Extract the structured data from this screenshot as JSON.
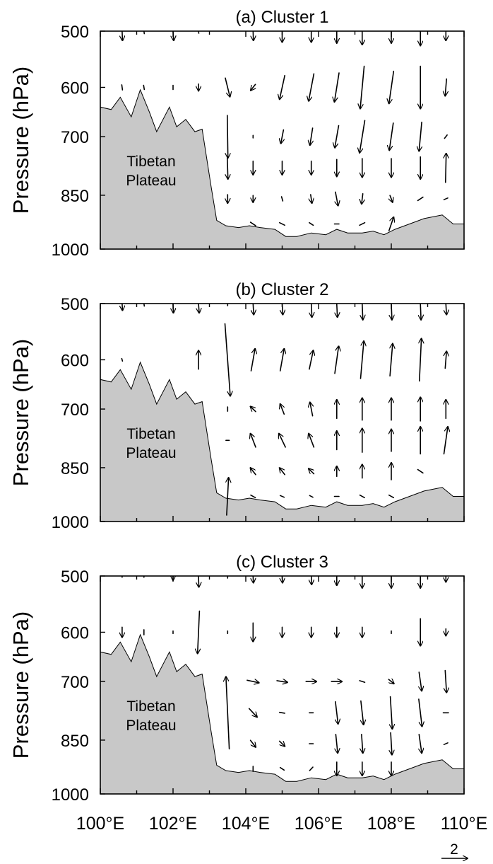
{
  "chart_data": [
    {
      "type": "vector",
      "title": "(a) Cluster 1",
      "ylabel": "Pressure (hPa)",
      "y_ticks": [
        "500",
        "600",
        "700",
        "850",
        "1000"
      ],
      "terrain_label": [
        "Tibetan",
        "Plateau"
      ],
      "terrain_color": "#c8c8c8",
      "vectors": [
        {
          "x": 100.6,
          "p": 500,
          "u": 0.1,
          "v": -2.2
        },
        {
          "x": 101.2,
          "p": 500,
          "u": 0.1,
          "v": -0.6
        },
        {
          "x": 102.0,
          "p": 500,
          "u": 0.2,
          "v": -2.2
        },
        {
          "x": 102.7,
          "p": 500,
          "u": 0.1,
          "v": -0.5
        },
        {
          "x": 104.2,
          "p": 500,
          "u": 0.1,
          "v": -2.2
        },
        {
          "x": 105.0,
          "p": 500,
          "u": 0.0,
          "v": -2.6
        },
        {
          "x": 105.8,
          "p": 500,
          "u": 0.0,
          "v": -2.6
        },
        {
          "x": 106.5,
          "p": 500,
          "u": 0.0,
          "v": -2.8
        },
        {
          "x": 107.2,
          "p": 500,
          "u": 0.0,
          "v": -3.2
        },
        {
          "x": 108.0,
          "p": 500,
          "u": 0.0,
          "v": -2.8
        },
        {
          "x": 108.8,
          "p": 500,
          "u": 0.0,
          "v": -3.4
        },
        {
          "x": 109.5,
          "p": 500,
          "u": 0.0,
          "v": -2.2
        },
        {
          "x": 100.6,
          "p": 600,
          "u": 0.1,
          "v": -0.6
        },
        {
          "x": 101.2,
          "p": 600,
          "u": 0.1,
          "v": -0.5
        },
        {
          "x": 102.0,
          "p": 600,
          "u": 0.0,
          "v": -0.5
        },
        {
          "x": 102.7,
          "p": 600,
          "u": 0.0,
          "v": -0.8
        },
        {
          "x": 103.5,
          "p": 600,
          "u": 0.7,
          "v": -2.2
        },
        {
          "x": 104.2,
          "p": 600,
          "u": -0.7,
          "v": -0.7
        },
        {
          "x": 105.0,
          "p": 600,
          "u": -0.8,
          "v": -2.8
        },
        {
          "x": 105.8,
          "p": 600,
          "u": -0.8,
          "v": -3.2
        },
        {
          "x": 106.5,
          "p": 600,
          "u": -0.7,
          "v": -3.4
        },
        {
          "x": 107.2,
          "p": 600,
          "u": -0.6,
          "v": -5.0
        },
        {
          "x": 108.0,
          "p": 600,
          "u": -0.7,
          "v": -3.8
        },
        {
          "x": 108.8,
          "p": 600,
          "u": 0.0,
          "v": -5.0
        },
        {
          "x": 109.5,
          "p": 600,
          "u": -0.2,
          "v": -2.0
        },
        {
          "x": 103.5,
          "p": 700,
          "u": 0.1,
          "v": -5.0
        },
        {
          "x": 104.2,
          "p": 700,
          "u": 0.0,
          "v": -0.3
        },
        {
          "x": 105.0,
          "p": 700,
          "u": -0.4,
          "v": -1.6
        },
        {
          "x": 105.8,
          "p": 700,
          "u": -0.4,
          "v": -2.0
        },
        {
          "x": 106.5,
          "p": 700,
          "u": -0.6,
          "v": -2.6
        },
        {
          "x": 107.2,
          "p": 700,
          "u": -0.8,
          "v": -3.8
        },
        {
          "x": 108.0,
          "p": 700,
          "u": -0.6,
          "v": -3.2
        },
        {
          "x": 108.8,
          "p": 700,
          "u": -0.4,
          "v": -3.4
        },
        {
          "x": 109.5,
          "p": 700,
          "u": -0.4,
          "v": -0.4
        },
        {
          "x": 103.5,
          "p": 780,
          "u": 0.1,
          "v": -2.6
        },
        {
          "x": 104.2,
          "p": 780,
          "u": 0.0,
          "v": -1.6
        },
        {
          "x": 105.0,
          "p": 780,
          "u": 0.0,
          "v": -1.6
        },
        {
          "x": 105.8,
          "p": 780,
          "u": 0.0,
          "v": -1.6
        },
        {
          "x": 106.5,
          "p": 780,
          "u": 0.0,
          "v": -2.0
        },
        {
          "x": 107.2,
          "p": 780,
          "u": 0.0,
          "v": -2.2
        },
        {
          "x": 108.0,
          "p": 780,
          "u": 0.0,
          "v": -2.2
        },
        {
          "x": 108.8,
          "p": 780,
          "u": 0.0,
          "v": -2.6
        },
        {
          "x": 109.5,
          "p": 780,
          "u": 0.1,
          "v": 3.4
        },
        {
          "x": 103.5,
          "p": 860,
          "u": 0.0,
          "v": -1.0
        },
        {
          "x": 104.2,
          "p": 860,
          "u": 0.0,
          "v": -0.8
        },
        {
          "x": 105.0,
          "p": 860,
          "u": 0.2,
          "v": -0.5
        },
        {
          "x": 105.8,
          "p": 860,
          "u": 0.2,
          "v": -1.0
        },
        {
          "x": 106.5,
          "p": 860,
          "u": 0.4,
          "v": -1.6
        },
        {
          "x": 107.2,
          "p": 860,
          "u": -0.2,
          "v": -1.2
        },
        {
          "x": 108.0,
          "p": 860,
          "u": 0.4,
          "v": -0.8
        },
        {
          "x": 108.8,
          "p": 860,
          "u": 0.8,
          "v": 0.4
        },
        {
          "x": 109.5,
          "p": 860,
          "u": 0.6,
          "v": 0.2
        },
        {
          "x": 104.2,
          "p": 930,
          "u": 0.8,
          "v": -0.4
        },
        {
          "x": 105.0,
          "p": 930,
          "u": 0.8,
          "v": -0.3
        },
        {
          "x": 105.8,
          "p": 930,
          "u": 0.6,
          "v": -0.3
        },
        {
          "x": 106.5,
          "p": 930,
          "u": 0.7,
          "v": 0.0
        },
        {
          "x": 107.2,
          "p": 930,
          "u": 0.8,
          "v": 0.3
        },
        {
          "x": 108.0,
          "p": 930,
          "u": 0.7,
          "v": 1.6
        }
      ]
    },
    {
      "type": "vector",
      "title": "(b) Cluster 2",
      "ylabel": "Pressure (hPa)",
      "y_ticks": [
        "500",
        "600",
        "700",
        "850",
        "1000"
      ],
      "terrain_label": [
        "Tibetan",
        "Plateau"
      ],
      "terrain_color": "#c8c8c8",
      "vectors": [
        {
          "x": 100.6,
          "p": 500,
          "u": 0.1,
          "v": -1.6
        },
        {
          "x": 101.2,
          "p": 500,
          "u": 0.1,
          "v": -0.6
        },
        {
          "x": 102.0,
          "p": 500,
          "u": 0.1,
          "v": -2.2
        },
        {
          "x": 102.7,
          "p": 500,
          "u": 0.2,
          "v": -2.2
        },
        {
          "x": 103.5,
          "p": 500,
          "u": 0.0,
          "v": -0.5
        },
        {
          "x": 104.2,
          "p": 500,
          "u": 0.2,
          "v": -2.6
        },
        {
          "x": 105.0,
          "p": 500,
          "u": 0.2,
          "v": -2.6
        },
        {
          "x": 105.8,
          "p": 500,
          "u": 0.2,
          "v": -3.2
        },
        {
          "x": 106.5,
          "p": 500,
          "u": 0.2,
          "v": -3.2
        },
        {
          "x": 107.2,
          "p": 500,
          "u": 0.2,
          "v": -3.8
        },
        {
          "x": 108.0,
          "p": 500,
          "u": 0.2,
          "v": -3.8
        },
        {
          "x": 108.8,
          "p": 500,
          "u": 0.2,
          "v": -3.8
        },
        {
          "x": 109.5,
          "p": 500,
          "u": 0.2,
          "v": -2.6
        },
        {
          "x": 100.6,
          "p": 600,
          "u": 0.1,
          "v": -0.3
        },
        {
          "x": 102.7,
          "p": 600,
          "u": 0.0,
          "v": 2.2
        },
        {
          "x": 103.5,
          "p": 600,
          "u": 0.8,
          "v": -8.5
        },
        {
          "x": 104.2,
          "p": 600,
          "u": 0.6,
          "v": 2.6
        },
        {
          "x": 105.0,
          "p": 600,
          "u": 0.6,
          "v": 2.6
        },
        {
          "x": 105.8,
          "p": 600,
          "u": 0.6,
          "v": 2.2
        },
        {
          "x": 106.5,
          "p": 600,
          "u": 0.6,
          "v": 3.2
        },
        {
          "x": 107.2,
          "p": 600,
          "u": 0.5,
          "v": 4.4
        },
        {
          "x": 108.0,
          "p": 600,
          "u": 0.4,
          "v": 3.8
        },
        {
          "x": 108.8,
          "p": 600,
          "u": 0.3,
          "v": 5.0
        },
        {
          "x": 109.5,
          "p": 600,
          "u": 0.2,
          "v": 2.0
        },
        {
          "x": 103.5,
          "p": 700,
          "u": 0.0,
          "v": -0.5
        },
        {
          "x": 104.2,
          "p": 700,
          "u": -0.8,
          "v": 0.6
        },
        {
          "x": 105.0,
          "p": 700,
          "u": -0.6,
          "v": 1.2
        },
        {
          "x": 105.8,
          "p": 700,
          "u": -0.4,
          "v": 1.6
        },
        {
          "x": 106.5,
          "p": 700,
          "u": 0.0,
          "v": 2.2
        },
        {
          "x": 107.2,
          "p": 700,
          "u": 0.0,
          "v": 2.6
        },
        {
          "x": 108.0,
          "p": 700,
          "u": 0.0,
          "v": 2.6
        },
        {
          "x": 108.8,
          "p": 700,
          "u": 0.0,
          "v": 2.8
        },
        {
          "x": 109.5,
          "p": 700,
          "u": 0.0,
          "v": 2.2
        },
        {
          "x": 103.5,
          "p": 780,
          "u": -0.5,
          "v": 0.0
        },
        {
          "x": 104.2,
          "p": 780,
          "u": -0.8,
          "v": 1.6
        },
        {
          "x": 105.0,
          "p": 780,
          "u": -1.0,
          "v": 1.6
        },
        {
          "x": 105.8,
          "p": 780,
          "u": -0.8,
          "v": 1.6
        },
        {
          "x": 106.5,
          "p": 780,
          "u": 0.0,
          "v": 2.2
        },
        {
          "x": 107.2,
          "p": 780,
          "u": 0.0,
          "v": 2.8
        },
        {
          "x": 108.0,
          "p": 780,
          "u": 0.0,
          "v": 2.6
        },
        {
          "x": 108.8,
          "p": 780,
          "u": 0.0,
          "v": 3.2
        },
        {
          "x": 109.5,
          "p": 780,
          "u": 0.6,
          "v": 3.2
        },
        {
          "x": 104.2,
          "p": 860,
          "u": -0.8,
          "v": 0.8
        },
        {
          "x": 105.0,
          "p": 860,
          "u": -0.8,
          "v": 0.8
        },
        {
          "x": 105.8,
          "p": 860,
          "u": -0.8,
          "v": 0.6
        },
        {
          "x": 106.5,
          "p": 860,
          "u": 0.0,
          "v": 1.2
        },
        {
          "x": 107.2,
          "p": 860,
          "u": 0.0,
          "v": 1.6
        },
        {
          "x": 108.0,
          "p": 860,
          "u": 0.0,
          "v": 2.0
        },
        {
          "x": 108.8,
          "p": 860,
          "u": -0.8,
          "v": 0.4
        },
        {
          "x": 103.5,
          "p": 930,
          "u": 0.3,
          "v": 4.4
        },
        {
          "x": 104.2,
          "p": 930,
          "u": -0.7,
          "v": 0.3
        },
        {
          "x": 105.0,
          "p": 930,
          "u": -0.6,
          "v": 0.2
        },
        {
          "x": 105.8,
          "p": 930,
          "u": -0.5,
          "v": 0.2
        },
        {
          "x": 106.5,
          "p": 930,
          "u": -0.7,
          "v": 0.0
        },
        {
          "x": 107.2,
          "p": 930,
          "u": -0.7,
          "v": 0.3
        },
        {
          "x": 108.0,
          "p": 930,
          "u": -0.7,
          "v": 0.3
        }
      ]
    },
    {
      "type": "vector",
      "title": "(c) Cluster 3",
      "ylabel": "Pressure (hPa)",
      "y_ticks": [
        "500",
        "600",
        "700",
        "850",
        "1000"
      ],
      "terrain_label": [
        "Tibetan",
        "Plateau"
      ],
      "terrain_color": "#c8c8c8",
      "vectors": [
        {
          "x": 100.6,
          "p": 500,
          "u": 0.0,
          "v": -0.3
        },
        {
          "x": 101.2,
          "p": 500,
          "u": 0.0,
          "v": -0.3
        },
        {
          "x": 102.0,
          "p": 500,
          "u": 0.0,
          "v": -1.0
        },
        {
          "x": 102.7,
          "p": 500,
          "u": 0.1,
          "v": -2.6
        },
        {
          "x": 103.5,
          "p": 500,
          "u": 0.0,
          "v": -0.5
        },
        {
          "x": 104.2,
          "p": 500,
          "u": 0.1,
          "v": -1.6
        },
        {
          "x": 105.0,
          "p": 500,
          "u": 0.1,
          "v": -1.6
        },
        {
          "x": 105.8,
          "p": 500,
          "u": 0.1,
          "v": -2.0
        },
        {
          "x": 106.5,
          "p": 500,
          "u": 0.0,
          "v": -2.2
        },
        {
          "x": 107.2,
          "p": 500,
          "u": 0.0,
          "v": -2.8
        },
        {
          "x": 108.0,
          "p": 500,
          "u": 0.0,
          "v": -2.8
        },
        {
          "x": 108.8,
          "p": 500,
          "u": 0.0,
          "v": -2.8
        },
        {
          "x": 109.5,
          "p": 500,
          "u": 0.0,
          "v": -1.4
        },
        {
          "x": 100.6,
          "p": 600,
          "u": 0.0,
          "v": -1.2
        },
        {
          "x": 101.2,
          "p": 600,
          "u": 0.0,
          "v": -0.6
        },
        {
          "x": 102.0,
          "p": 600,
          "u": 0.0,
          "v": -0.3
        },
        {
          "x": 102.7,
          "p": 600,
          "u": -0.3,
          "v": -5.0
        },
        {
          "x": 103.5,
          "p": 600,
          "u": 0.0,
          "v": -0.3
        },
        {
          "x": 104.2,
          "p": 600,
          "u": 0.0,
          "v": -2.2
        },
        {
          "x": 105.0,
          "p": 600,
          "u": 0.0,
          "v": -1.2
        },
        {
          "x": 105.8,
          "p": 600,
          "u": 0.0,
          "v": -1.2
        },
        {
          "x": 106.5,
          "p": 600,
          "u": 0.0,
          "v": -1.2
        },
        {
          "x": 107.2,
          "p": 600,
          "u": 0.0,
          "v": -1.2
        },
        {
          "x": 108.0,
          "p": 600,
          "u": 0.0,
          "v": -0.3
        },
        {
          "x": 108.8,
          "p": 600,
          "u": 0.0,
          "v": -3.2
        },
        {
          "x": 109.5,
          "p": 600,
          "u": 0.0,
          "v": -0.8
        },
        {
          "x": 104.2,
          "p": 700,
          "u": 1.8,
          "v": -0.3
        },
        {
          "x": 105.0,
          "p": 700,
          "u": 1.6,
          "v": -0.2
        },
        {
          "x": 105.8,
          "p": 700,
          "u": 1.6,
          "v": 0.0
        },
        {
          "x": 106.5,
          "p": 700,
          "u": 1.6,
          "v": 0.0
        },
        {
          "x": 107.2,
          "p": 700,
          "u": 0.8,
          "v": -0.2
        },
        {
          "x": 108.0,
          "p": 700,
          "u": 0.8,
          "v": -0.5
        },
        {
          "x": 108.8,
          "p": 700,
          "u": 0.4,
          "v": -2.2
        },
        {
          "x": 109.5,
          "p": 700,
          "u": 0.2,
          "v": -2.6
        },
        {
          "x": 103.5,
          "p": 780,
          "u": -0.5,
          "v": 8.5
        },
        {
          "x": 104.2,
          "p": 780,
          "u": 1.2,
          "v": -1.0
        },
        {
          "x": 105.0,
          "p": 780,
          "u": 0.8,
          "v": -0.1
        },
        {
          "x": 105.8,
          "p": 780,
          "u": 0.6,
          "v": 0.0
        },
        {
          "x": 106.5,
          "p": 780,
          "u": 0.4,
          "v": -2.6
        },
        {
          "x": 107.2,
          "p": 780,
          "u": 0.4,
          "v": -2.8
        },
        {
          "x": 108.0,
          "p": 780,
          "u": 0.3,
          "v": -3.8
        },
        {
          "x": 108.8,
          "p": 780,
          "u": 0.5,
          "v": -3.2
        },
        {
          "x": 109.5,
          "p": 780,
          "u": 0.8,
          "v": 0.0
        },
        {
          "x": 104.2,
          "p": 860,
          "u": 0.8,
          "v": -0.8
        },
        {
          "x": 105.0,
          "p": 860,
          "u": 0.8,
          "v": -0.6
        },
        {
          "x": 105.8,
          "p": 860,
          "u": 0.6,
          "v": 0.0
        },
        {
          "x": 106.5,
          "p": 860,
          "u": 0.3,
          "v": -2.2
        },
        {
          "x": 107.2,
          "p": 860,
          "u": 0.2,
          "v": -2.2
        },
        {
          "x": 108.0,
          "p": 860,
          "u": 0.2,
          "v": -2.6
        },
        {
          "x": 108.8,
          "p": 860,
          "u": 0.4,
          "v": -2.2
        },
        {
          "x": 109.5,
          "p": 860,
          "u": 0.6,
          "v": 0.2
        },
        {
          "x": 104.2,
          "p": 930,
          "u": 0.0,
          "v": -0.6
        },
        {
          "x": 105.0,
          "p": 930,
          "u": 0.6,
          "v": -0.3
        },
        {
          "x": 105.8,
          "p": 930,
          "u": 0.5,
          "v": 0.4
        },
        {
          "x": 106.5,
          "p": 930,
          "u": 0.0,
          "v": -1.6
        },
        {
          "x": 107.2,
          "p": 930,
          "u": 0.0,
          "v": -1.6
        },
        {
          "x": 108.0,
          "p": 930,
          "u": 0.0,
          "v": -1.6
        }
      ]
    }
  ],
  "terrain_profile": {
    "lon": [
      100.0,
      100.3,
      100.55,
      100.85,
      101.1,
      101.35,
      101.55,
      101.9,
      102.1,
      102.35,
      102.6,
      102.8,
      103.05,
      103.2,
      103.45,
      103.8,
      104.1,
      104.4,
      104.8,
      105.1,
      105.4,
      105.8,
      106.2,
      106.5,
      106.8,
      107.2,
      107.5,
      107.8,
      108.1,
      108.5,
      108.9,
      109.4,
      109.7,
      110.0
    ],
    "pres": [
      640,
      645,
      620,
      660,
      605,
      650,
      690,
      640,
      680,
      665,
      690,
      685,
      830,
      920,
      935,
      940,
      935,
      940,
      945,
      965,
      965,
      955,
      960,
      945,
      955,
      955,
      950,
      960,
      945,
      930,
      915,
      905,
      930,
      930
    ]
  },
  "x_ticks": [
    "100°E",
    "102°E",
    "104°E",
    "106°E",
    "108°E",
    "110°E"
  ],
  "reference_vector": {
    "label": "2",
    "magnitude": 2
  }
}
